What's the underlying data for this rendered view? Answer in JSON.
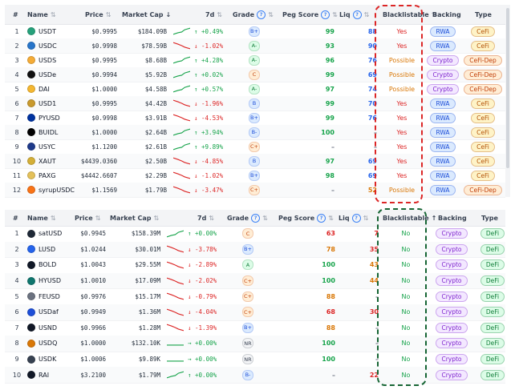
{
  "headers": {
    "num": "#",
    "name": "Name",
    "price": "Price",
    "mcap": "Market Cap",
    "d7": "7d",
    "grade": "Grade",
    "peg": "Peg Score",
    "liq": "Liq",
    "blacklistable": "Blacklistable",
    "backing": "Backing",
    "type": "Type",
    "sort_icon": "⇅",
    "sort_desc_icon": "↓",
    "sort_asc_icon": "↑",
    "help_icon": "?"
  },
  "colors": {
    "positive": "#16a34a",
    "negative": "#dc2626",
    "neutral": "#d97706",
    "rwa_pill": "#dbeafe",
    "crypto_pill": "#f3e8ff",
    "cefi_pill": "#fef3c7",
    "cefidep_pill": "#ffedd5",
    "defi_pill": "#dcfce7",
    "red_ring": "#dc2626",
    "green_ring": "#166534"
  },
  "table1": {
    "rows": [
      {
        "num": "1",
        "name": "USDT",
        "coin": "#26a17b",
        "price": "$0.9995",
        "mcap": "$184.09B",
        "trend": "up",
        "chg": "↑ +0.49%",
        "grade": "B+",
        "peg": "99",
        "liq": "88",
        "liqColor": "blue",
        "black": "Yes",
        "blackColor": "red",
        "backing": "RWA",
        "type": "CeFi"
      },
      {
        "num": "2",
        "name": "USDC",
        "coin": "#2775ca",
        "price": "$0.9998",
        "mcap": "$78.59B",
        "trend": "down",
        "chg": "↓ -1.02%",
        "grade": "A-",
        "peg": "93",
        "liq": "90",
        "liqColor": "blue",
        "black": "Yes",
        "blackColor": "red",
        "backing": "RWA",
        "type": "CeFi"
      },
      {
        "num": "3",
        "name": "USDS",
        "coin": "#f5ac37",
        "price": "$0.9995",
        "mcap": "$8.68B",
        "trend": "up",
        "chg": "↑ +4.28%",
        "grade": "A-",
        "peg": "96",
        "liq": "76",
        "liqColor": "blue",
        "black": "Possible",
        "blackColor": "orange",
        "backing": "Crypto",
        "type": "CeFi-Dep"
      },
      {
        "num": "4",
        "name": "USDe",
        "coin": "#111111",
        "price": "$0.9994",
        "mcap": "$5.92B",
        "trend": "up",
        "chg": "↑ +0.02%",
        "grade": "C",
        "peg": "99",
        "liq": "69",
        "liqColor": "blue",
        "black": "Possible",
        "blackColor": "orange",
        "backing": "Crypto",
        "type": "CeFi-Dep"
      },
      {
        "num": "5",
        "name": "DAI",
        "coin": "#f4b731",
        "price": "$1.0000",
        "mcap": "$4.58B",
        "trend": "up",
        "chg": "↑ +0.57%",
        "grade": "A-",
        "peg": "97",
        "liq": "74",
        "liqColor": "blue",
        "black": "Possible",
        "blackColor": "orange",
        "backing": "Crypto",
        "type": "CeFi-Dep"
      },
      {
        "num": "6",
        "name": "USD1",
        "coin": "#c99a2e",
        "price": "$0.9995",
        "mcap": "$4.42B",
        "trend": "down",
        "chg": "↓ -1.96%",
        "grade": "B",
        "peg": "99",
        "liq": "70",
        "liqColor": "blue",
        "black": "Yes",
        "blackColor": "red",
        "backing": "RWA",
        "type": "CeFi"
      },
      {
        "num": "7",
        "name": "PYUSD",
        "coin": "#0033a0",
        "price": "$0.9998",
        "mcap": "$3.91B",
        "trend": "down",
        "chg": "↓ -4.53%",
        "grade": "B+",
        "peg": "99",
        "liq": "76",
        "liqColor": "blue",
        "black": "Yes",
        "blackColor": "red",
        "backing": "RWA",
        "type": "CeFi"
      },
      {
        "num": "8",
        "name": "BUIDL",
        "coin": "#000000",
        "price": "$1.0000",
        "mcap": "$2.64B",
        "trend": "up",
        "chg": "↑ +3.94%",
        "grade": "B-",
        "peg": "100",
        "liq": "–",
        "liqColor": "gray",
        "black": "Yes",
        "blackColor": "red",
        "backing": "RWA",
        "type": "CeFi"
      },
      {
        "num": "9",
        "name": "USYC",
        "coin": "#1e3a8a",
        "price": "$1.1200",
        "mcap": "$2.61B",
        "trend": "up",
        "chg": "↑ +9.89%",
        "grade": "C+",
        "peg": "–",
        "liq": "–",
        "liqColor": "gray",
        "black": "Yes",
        "blackColor": "red",
        "backing": "RWA",
        "type": "CeFi"
      },
      {
        "num": "10",
        "name": "XAUT",
        "coin": "#d4af37",
        "price": "$4439.0360",
        "mcap": "$2.50B",
        "trend": "down",
        "chg": "↓ -4.85%",
        "grade": "B",
        "peg": "97",
        "liq": "69",
        "liqColor": "blue",
        "black": "Yes",
        "blackColor": "red",
        "backing": "RWA",
        "type": "CeFi"
      },
      {
        "num": "11",
        "name": "PAXG",
        "coin": "#e4c15a",
        "price": "$4442.6607",
        "mcap": "$2.29B",
        "trend": "down",
        "chg": "↓ -1.02%",
        "grade": "B+",
        "peg": "98",
        "liq": "69",
        "liqColor": "blue",
        "black": "Yes",
        "blackColor": "red",
        "backing": "RWA",
        "type": "CeFi"
      },
      {
        "num": "12",
        "name": "syrupUSDC",
        "coin": "#f97316",
        "price": "$1.1569",
        "mcap": "$1.79B",
        "trend": "down",
        "chg": "↓ -3.47%",
        "grade": "C+",
        "peg": "–",
        "liq": "52",
        "liqColor": "orange",
        "black": "Possible",
        "blackColor": "orange",
        "backing": "RWA",
        "type": "CeFi-Dep"
      }
    ]
  },
  "table2": {
    "rows": [
      {
        "num": "1",
        "name": "satUSD",
        "coin": "#1f2937",
        "price": "$0.9945",
        "mcap": "$158.39M",
        "trend": "up",
        "chg": "↑ +0.00%",
        "grade": "C",
        "peg": "63",
        "pegColor": "red",
        "liq": "7",
        "liqColor": "red",
        "black": "No",
        "backing": "Crypto",
        "type": "DeFi"
      },
      {
        "num": "2",
        "name": "LUSD",
        "coin": "#2563eb",
        "price": "$1.0244",
        "mcap": "$30.01M",
        "trend": "down",
        "chg": "↓ -3.78%",
        "grade": "B+",
        "peg": "78",
        "pegColor": "orange",
        "liq": "35",
        "liqColor": "red",
        "black": "No",
        "backing": "Crypto",
        "type": "DeFi"
      },
      {
        "num": "3",
        "name": "BOLD",
        "coin": "#111827",
        "price": "$1.0043",
        "mcap": "$29.55M",
        "trend": "down",
        "chg": "↓ -2.89%",
        "grade": "A",
        "peg": "100",
        "pegColor": "green",
        "liq": "43",
        "liqColor": "orange",
        "black": "No",
        "backing": "Crypto",
        "type": "DeFi"
      },
      {
        "num": "4",
        "name": "HYUSD",
        "coin": "#0f766e",
        "price": "$1.0010",
        "mcap": "$17.09M",
        "trend": "down",
        "chg": "↓ -2.02%",
        "grade": "C+",
        "peg": "100",
        "pegColor": "green",
        "liq": "44",
        "liqColor": "orange",
        "black": "No",
        "backing": "Crypto",
        "type": "DeFi"
      },
      {
        "num": "5",
        "name": "FEUSD",
        "coin": "#6b7280",
        "price": "$0.9976",
        "mcap": "$15.17M",
        "trend": "down",
        "chg": "↓ -0.79%",
        "grade": "C+",
        "peg": "88",
        "pegColor": "orange",
        "liq": "–",
        "liqColor": "gray",
        "black": "No",
        "backing": "Crypto",
        "type": "DeFi"
      },
      {
        "num": "6",
        "name": "USDaf",
        "coin": "#1d4ed8",
        "price": "$0.9949",
        "mcap": "$1.36M",
        "trend": "down",
        "chg": "↓ -4.04%",
        "grade": "C+",
        "peg": "68",
        "pegColor": "red",
        "liq": "30",
        "liqColor": "red",
        "black": "No",
        "backing": "Crypto",
        "type": "DeFi"
      },
      {
        "num": "7",
        "name": "USND",
        "coin": "#111827",
        "price": "$0.9966",
        "mcap": "$1.28M",
        "trend": "down",
        "chg": "↓ -1.39%",
        "grade": "B+",
        "peg": "88",
        "pegColor": "orange",
        "liq": "–",
        "liqColor": "gray",
        "black": "No",
        "backing": "Crypto",
        "type": "DeFi"
      },
      {
        "num": "8",
        "name": "USDQ",
        "coin": "#d97706",
        "price": "$1.0000",
        "mcap": "$132.10K",
        "trend": "flat",
        "chg": "→ +0.00%",
        "grade": "NR",
        "peg": "100",
        "pegColor": "green",
        "liq": "–",
        "liqColor": "gray",
        "black": "No",
        "backing": "Crypto",
        "type": "DeFi"
      },
      {
        "num": "9",
        "name": "USDK",
        "coin": "#374151",
        "price": "$1.0006",
        "mcap": "$9.89K",
        "trend": "flat",
        "chg": "→ +0.00%",
        "grade": "NR",
        "peg": "100",
        "pegColor": "green",
        "liq": "–",
        "liqColor": "gray",
        "black": "No",
        "backing": "Crypto",
        "type": "DeFi"
      },
      {
        "num": "10",
        "name": "RAI",
        "coin": "#111827",
        "price": "$3.2100",
        "mcap": "$1.79M",
        "trend": "up",
        "chg": "↑ +0.00%",
        "grade": "B-",
        "peg": "–",
        "pegColor": "gray",
        "liq": "22",
        "liqColor": "red",
        "black": "No",
        "backing": "Crypto",
        "type": "DeFi"
      }
    ]
  }
}
